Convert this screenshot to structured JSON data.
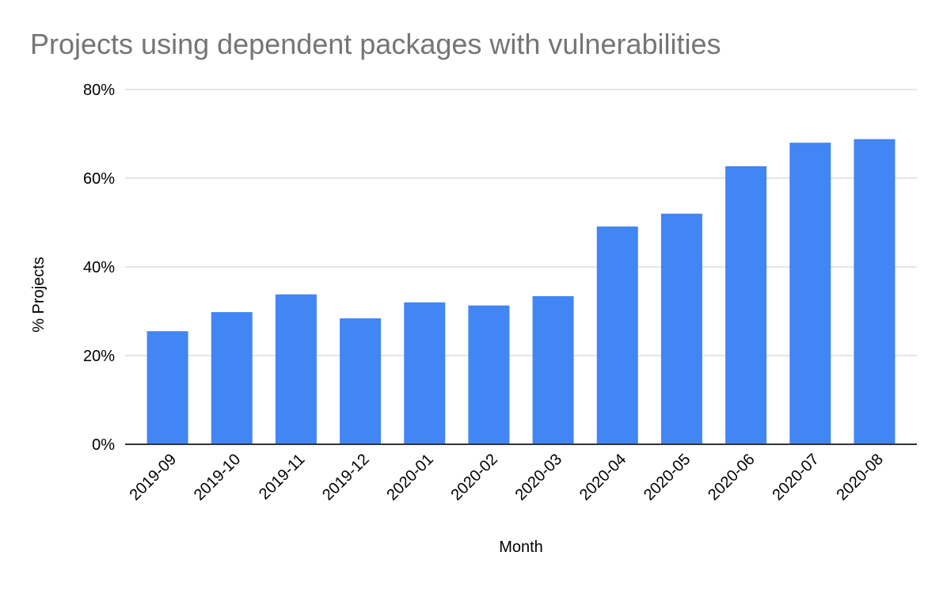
{
  "chart_data": {
    "type": "bar",
    "title": "Projects using dependent packages with vulnerabilities",
    "xlabel": "Month",
    "ylabel": "% Projects",
    "categories": [
      "2019-09",
      "2019-10",
      "2019-11",
      "2019-12",
      "2020-01",
      "2020-02",
      "2020-03",
      "2020-04",
      "2020-05",
      "2020-06",
      "2020-07",
      "2020-08"
    ],
    "values": [
      25.5,
      29.8,
      33.8,
      28.4,
      32.0,
      31.3,
      33.4,
      49.1,
      52.0,
      62.7,
      68.0,
      68.8
    ],
    "ylim": [
      0,
      80
    ],
    "yticks": [
      0,
      20,
      40,
      60,
      80
    ],
    "ytick_labels": [
      "0%",
      "20%",
      "40%",
      "60%",
      "80%"
    ],
    "grid": true,
    "legend": "none",
    "colors": {
      "bar": "#4285f4",
      "title": "#757575",
      "grid": "#cccccc",
      "axis": "#333333"
    }
  }
}
